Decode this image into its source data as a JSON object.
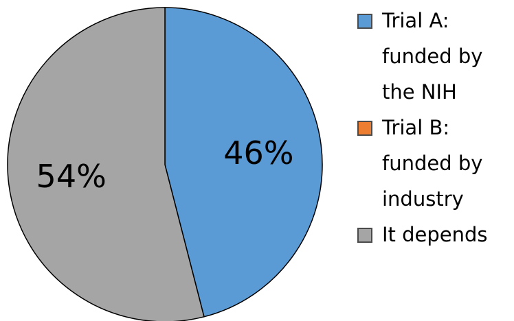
{
  "chart_data": {
    "type": "pie",
    "slices": [
      {
        "label_lines": [
          "Trial A:",
          "funded by",
          "the NIH"
        ],
        "value": 46,
        "value_label": "46%",
        "color": "#5b9bd5"
      },
      {
        "label_lines": [
          "Trial B:",
          "funded by",
          "industry"
        ],
        "value": 0,
        "value_label": "",
        "color": "#ed7d31"
      },
      {
        "label_lines": [
          "It depends"
        ],
        "value": 54,
        "value_label": "54%",
        "color": "#a5a5a5"
      }
    ],
    "legend_position": "right"
  }
}
